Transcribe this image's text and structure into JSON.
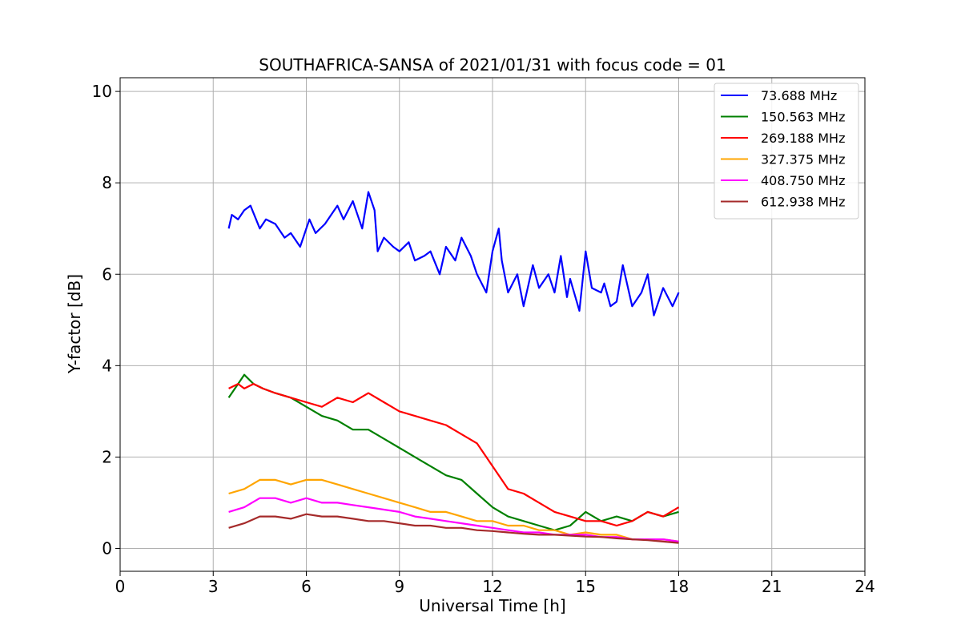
{
  "chart_data": {
    "type": "line",
    "title": "SOUTHAFRICA-SANSA of 2021/01/31 with focus code = 01",
    "xlabel": "Universal Time [h]",
    "ylabel": "Y-factor [dB]",
    "xlim": [
      0,
      24
    ],
    "ylim": [
      -0.5,
      10.3
    ],
    "xticks": [
      0,
      3,
      6,
      9,
      12,
      15,
      18,
      21,
      24
    ],
    "yticks": [
      0,
      2,
      4,
      6,
      8,
      10
    ],
    "grid": true,
    "legend_position": "top-right",
    "series": [
      {
        "name": " 73.688 MHz",
        "color": "#0000ff",
        "x": [
          3.5,
          3.6,
          3.8,
          4.0,
          4.2,
          4.5,
          4.7,
          5.0,
          5.3,
          5.5,
          5.8,
          6.0,
          6.1,
          6.3,
          6.6,
          6.8,
          7.0,
          7.2,
          7.5,
          7.8,
          8.0,
          8.2,
          8.3,
          8.5,
          8.8,
          9.0,
          9.3,
          9.5,
          9.8,
          10.0,
          10.3,
          10.5,
          10.8,
          11.0,
          11.3,
          11.5,
          11.8,
          12.0,
          12.2,
          12.3,
          12.5,
          12.8,
          13.0,
          13.3,
          13.5,
          13.8,
          14.0,
          14.2,
          14.4,
          14.5,
          14.8,
          15.0,
          15.2,
          15.5,
          15.6,
          15.8,
          16.0,
          16.2,
          16.5,
          16.8,
          17.0,
          17.2,
          17.5,
          17.8,
          18.0
        ],
        "y": [
          7.0,
          7.3,
          7.2,
          7.4,
          7.5,
          7.0,
          7.2,
          7.1,
          6.8,
          6.9,
          6.6,
          7.0,
          7.2,
          6.9,
          7.1,
          7.3,
          7.5,
          7.2,
          7.6,
          7.0,
          7.8,
          7.4,
          6.5,
          6.8,
          6.6,
          6.5,
          6.7,
          6.3,
          6.4,
          6.5,
          6.0,
          6.6,
          6.3,
          6.8,
          6.4,
          6.0,
          5.6,
          6.5,
          7.0,
          6.3,
          5.6,
          6.0,
          5.3,
          6.2,
          5.7,
          6.0,
          5.6,
          6.4,
          5.5,
          5.9,
          5.2,
          6.5,
          5.7,
          5.6,
          5.8,
          5.3,
          5.4,
          6.2,
          5.3,
          5.6,
          6.0,
          5.1,
          5.7,
          5.3,
          5.6
        ]
      },
      {
        "name": "150.563 MHz",
        "color": "#008000",
        "x": [
          3.5,
          3.8,
          4.0,
          4.3,
          4.6,
          5.0,
          5.5,
          6.0,
          6.5,
          7.0,
          7.5,
          8.0,
          8.5,
          9.0,
          9.5,
          10.0,
          10.5,
          11.0,
          11.5,
          12.0,
          12.5,
          13.0,
          13.5,
          14.0,
          14.5,
          15.0,
          15.5,
          16.0,
          16.5,
          17.0,
          17.5,
          18.0
        ],
        "y": [
          3.3,
          3.6,
          3.8,
          3.6,
          3.5,
          3.4,
          3.3,
          3.1,
          2.9,
          2.8,
          2.6,
          2.6,
          2.4,
          2.2,
          2.0,
          1.8,
          1.6,
          1.5,
          1.2,
          0.9,
          0.7,
          0.6,
          0.5,
          0.4,
          0.5,
          0.8,
          0.6,
          0.7,
          0.6,
          0.8,
          0.7,
          0.8
        ]
      },
      {
        "name": "269.188 MHz",
        "color": "#ff0000",
        "x": [
          3.5,
          3.8,
          4.0,
          4.3,
          4.6,
          5.0,
          5.5,
          6.0,
          6.5,
          7.0,
          7.5,
          8.0,
          8.5,
          9.0,
          9.5,
          10.0,
          10.5,
          11.0,
          11.5,
          12.0,
          12.5,
          13.0,
          13.5,
          14.0,
          14.5,
          15.0,
          15.5,
          16.0,
          16.5,
          17.0,
          17.5,
          18.0
        ],
        "y": [
          3.5,
          3.6,
          3.5,
          3.6,
          3.5,
          3.4,
          3.3,
          3.2,
          3.1,
          3.3,
          3.2,
          3.4,
          3.2,
          3.0,
          2.9,
          2.8,
          2.7,
          2.5,
          2.3,
          1.8,
          1.3,
          1.2,
          1.0,
          0.8,
          0.7,
          0.6,
          0.6,
          0.5,
          0.6,
          0.8,
          0.7,
          0.9
        ]
      },
      {
        "name": "327.375 MHz",
        "color": "#ffa500",
        "x": [
          3.5,
          4.0,
          4.5,
          5.0,
          5.5,
          6.0,
          6.5,
          7.0,
          7.5,
          8.0,
          8.5,
          9.0,
          9.5,
          10.0,
          10.5,
          11.0,
          11.5,
          12.0,
          12.5,
          13.0,
          13.5,
          14.0,
          14.5,
          15.0,
          15.5,
          16.0,
          16.5,
          17.0,
          17.5,
          18.0
        ],
        "y": [
          1.2,
          1.3,
          1.5,
          1.5,
          1.4,
          1.5,
          1.5,
          1.4,
          1.3,
          1.2,
          1.1,
          1.0,
          0.9,
          0.8,
          0.8,
          0.7,
          0.6,
          0.6,
          0.5,
          0.5,
          0.4,
          0.4,
          0.3,
          0.35,
          0.3,
          0.3,
          0.2,
          0.2,
          0.2,
          0.15
        ]
      },
      {
        "name": "408.750 MHz",
        "color": "#ff00ff",
        "x": [
          3.5,
          4.0,
          4.5,
          5.0,
          5.5,
          6.0,
          6.5,
          7.0,
          7.5,
          8.0,
          8.5,
          9.0,
          9.5,
          10.0,
          10.5,
          11.0,
          11.5,
          12.0,
          12.5,
          13.0,
          13.5,
          14.0,
          14.5,
          15.0,
          15.5,
          16.0,
          16.5,
          17.0,
          17.5,
          18.0
        ],
        "y": [
          0.8,
          0.9,
          1.1,
          1.1,
          1.0,
          1.1,
          1.0,
          1.0,
          0.95,
          0.9,
          0.85,
          0.8,
          0.7,
          0.65,
          0.6,
          0.55,
          0.5,
          0.45,
          0.4,
          0.35,
          0.35,
          0.3,
          0.3,
          0.3,
          0.25,
          0.25,
          0.2,
          0.2,
          0.2,
          0.15
        ]
      },
      {
        "name": "612.938 MHz",
        "color": "#a52a2a",
        "x": [
          3.5,
          4.0,
          4.5,
          5.0,
          5.5,
          6.0,
          6.5,
          7.0,
          7.5,
          8.0,
          8.5,
          9.0,
          9.5,
          10.0,
          10.5,
          11.0,
          11.5,
          12.0,
          12.5,
          13.0,
          13.5,
          14.0,
          14.5,
          15.0,
          15.5,
          16.0,
          16.5,
          17.0,
          17.5,
          18.0
        ],
        "y": [
          0.45,
          0.55,
          0.7,
          0.7,
          0.65,
          0.75,
          0.7,
          0.7,
          0.65,
          0.6,
          0.6,
          0.55,
          0.5,
          0.5,
          0.45,
          0.45,
          0.4,
          0.38,
          0.35,
          0.32,
          0.3,
          0.3,
          0.28,
          0.26,
          0.25,
          0.22,
          0.2,
          0.18,
          0.15,
          0.12
        ]
      }
    ]
  }
}
